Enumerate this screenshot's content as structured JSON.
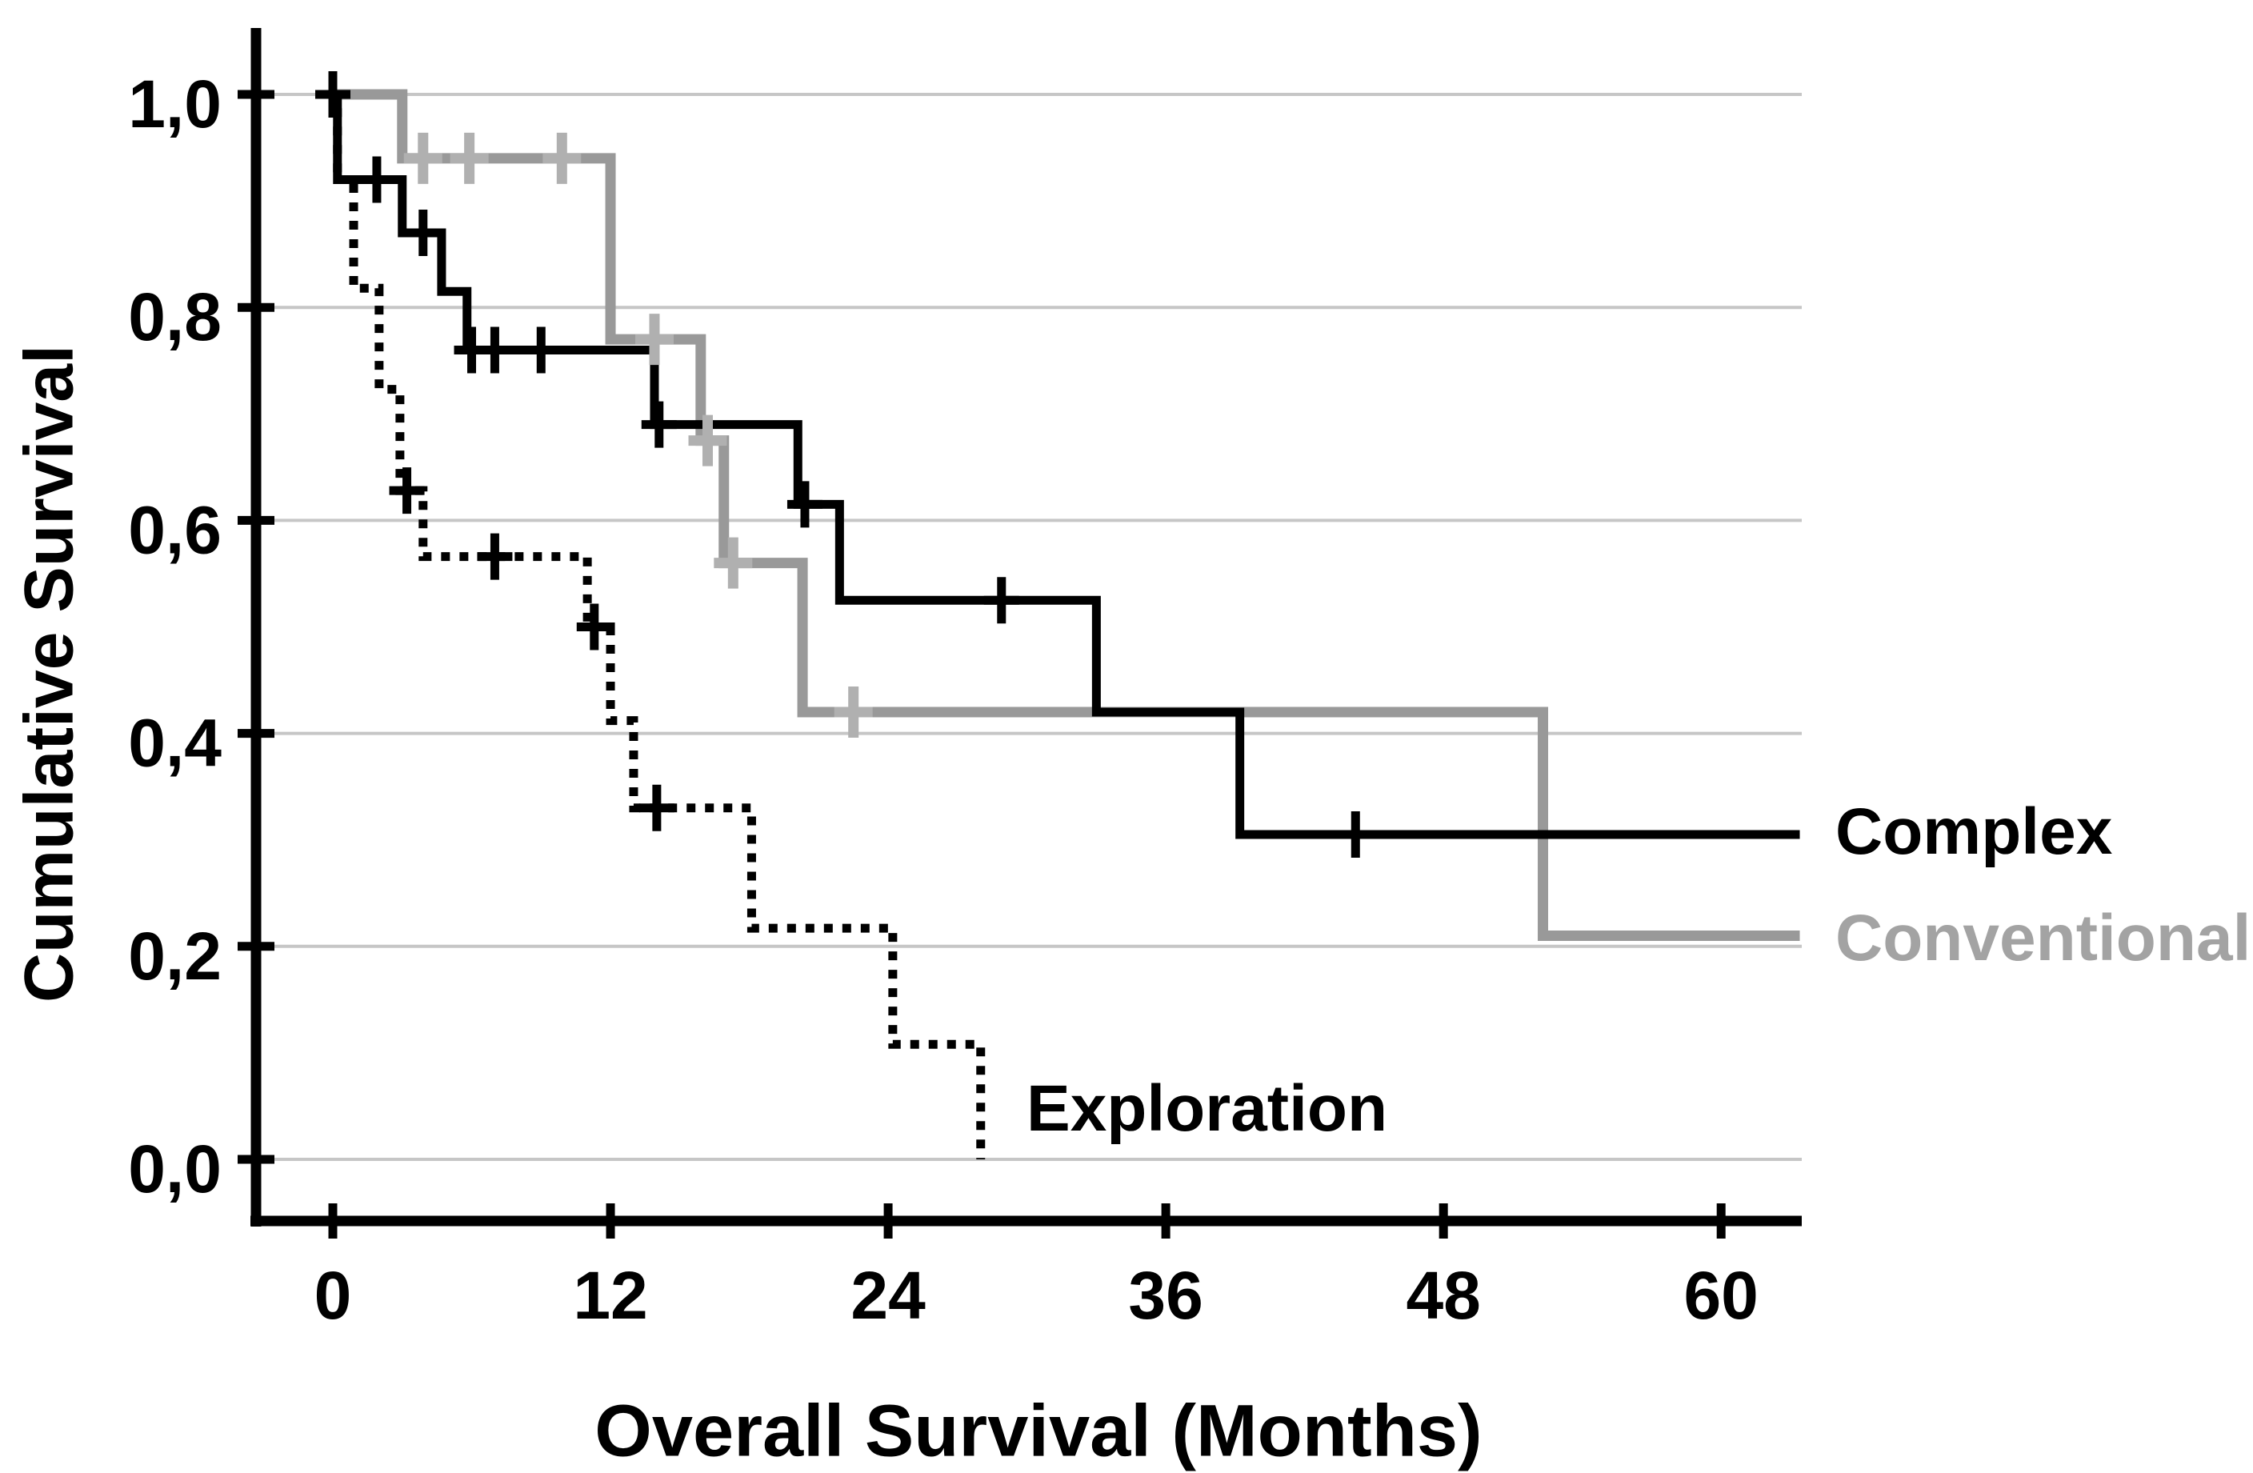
{
  "chart_data": {
    "type": "line",
    "subtype": "kaplan-meier-step",
    "title": "",
    "xlabel": "Overall Survival (Months)",
    "ylabel": "Cumulative Survival",
    "xlim": [
      -3.3,
      63.5
    ],
    "ylim": [
      -0.06,
      1.06
    ],
    "grid": "horizontal",
    "legend_position": "in-plot-labels",
    "decimal_separator": "comma",
    "xticks": {
      "values": [
        0,
        12,
        24,
        36,
        48,
        60
      ],
      "labels": [
        "0",
        "12",
        "24",
        "36",
        "48",
        "60"
      ]
    },
    "yticks": {
      "values": [
        1.0,
        0.8,
        0.6,
        0.4,
        0.2,
        0.0
      ],
      "labels": [
        "1,0",
        "0,8",
        "0,6",
        "0,4",
        "0,2",
        "0,0"
      ]
    },
    "style": {
      "background": "#ffffff",
      "grid_color": "#c6c6c6",
      "axis_color": "#000000"
    },
    "series": [
      {
        "name": "Conventional",
        "color": "#999999",
        "censor_color": "#b0b0b0",
        "label_color": "#a3a3a3",
        "line_style": "solid",
        "line_width": 13,
        "steps": [
          [
            0,
            1.0
          ],
          [
            3.0,
            0.94
          ],
          [
            12.0,
            0.77
          ],
          [
            15.9,
            0.675
          ],
          [
            16.9,
            0.56
          ],
          [
            20.3,
            0.42
          ],
          [
            52.3,
            0.21
          ]
        ],
        "end_x": 63.4,
        "censors": [
          [
            3.9,
            0.94
          ],
          [
            5.9,
            0.94
          ],
          [
            9.9,
            0.94
          ],
          [
            13.9,
            0.77
          ],
          [
            16.2,
            0.675
          ],
          [
            17.3,
            0.56
          ],
          [
            22.5,
            0.42
          ]
        ]
      },
      {
        "name": "Complex",
        "color": "#000000",
        "censor_color": "#000000",
        "label_color": "#000000",
        "line_style": "solid",
        "line_width": 11,
        "steps": [
          [
            0,
            1.0
          ],
          [
            0.2,
            0.92
          ],
          [
            3.0,
            0.87
          ],
          [
            4.7,
            0.815
          ],
          [
            5.8,
            0.76
          ],
          [
            13.9,
            0.69
          ],
          [
            20.1,
            0.615
          ],
          [
            21.9,
            0.525
          ],
          [
            33.0,
            0.42
          ],
          [
            39.2,
            0.305
          ]
        ],
        "end_x": 63.4,
        "censors": [
          [
            0,
            1.0
          ],
          [
            1.9,
            0.92
          ],
          [
            3.9,
            0.87
          ],
          [
            6.0,
            0.76
          ],
          [
            7.0,
            0.76
          ],
          [
            9.0,
            0.76
          ],
          [
            14.1,
            0.69
          ],
          [
            20.4,
            0.615
          ],
          [
            28.9,
            0.525
          ],
          [
            44.2,
            0.305
          ]
        ]
      },
      {
        "name": "Exploration",
        "color": "#000000",
        "censor_color": "#000000",
        "label_color": "#000000",
        "line_style": "dotted",
        "line_width": 11,
        "steps": [
          [
            0,
            1.0
          ],
          [
            0.2,
            0.92
          ],
          [
            0.9,
            0.818
          ],
          [
            2.0,
            0.723
          ],
          [
            2.9,
            0.628
          ],
          [
            3.9,
            0.566
          ],
          [
            11.0,
            0.5
          ],
          [
            12.0,
            0.412
          ],
          [
            13.0,
            0.33
          ],
          [
            18.1,
            0.217
          ],
          [
            24.2,
            0.108
          ],
          [
            28.0,
            0.0
          ]
        ],
        "end_x": 28.0,
        "censors": [
          [
            3.2,
            0.628
          ],
          [
            7.0,
            0.566
          ],
          [
            11.3,
            0.5
          ],
          [
            14.0,
            0.33
          ]
        ]
      }
    ]
  }
}
